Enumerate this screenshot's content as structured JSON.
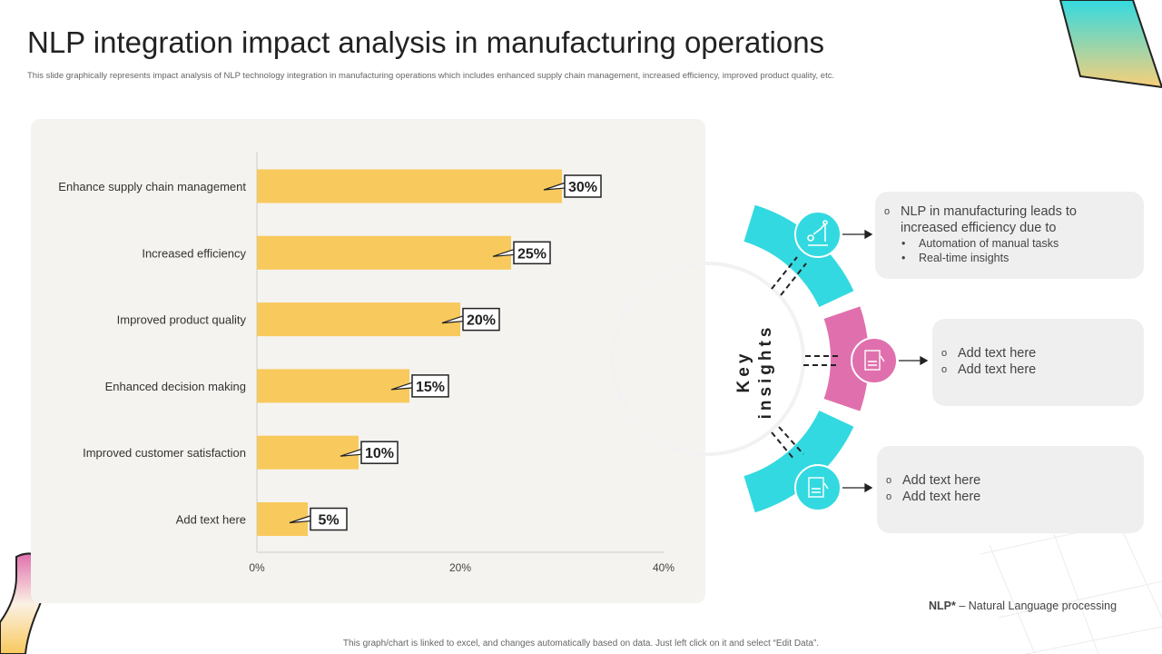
{
  "title": "NLP integration impact analysis in manufacturing operations",
  "subtitle": "This slide graphically represents impact analysis of NLP technology integration in manufacturing operations which includes enhanced supply chain management, increased efficiency, improved product quality, etc.",
  "chart_data": {
    "type": "bar",
    "orientation": "horizontal",
    "categories": [
      "Enhance supply chain management",
      "Increased efficiency",
      "Improved product quality",
      "Enhanced decision making",
      "Improved customer satisfaction",
      "Add text here"
    ],
    "values": [
      30,
      25,
      20,
      15,
      10,
      5
    ],
    "data_labels": [
      "30%",
      "25%",
      "20%",
      "15%",
      "10%",
      "5%"
    ],
    "xlim": [
      0,
      40
    ],
    "x_ticks": [
      "0%",
      "20%",
      "40%"
    ],
    "bar_color": "#f8c95c",
    "grid": false
  },
  "insights": {
    "label": "Key insights",
    "colors": {
      "cyan": "#33d9e0",
      "pink": "#e070ad"
    },
    "items": [
      {
        "icon": "robot-arm-icon",
        "heading": "NLP in manufacturing leads to increased efficiency due to",
        "bullets": [
          "Automation of manual tasks",
          "Real-time insights"
        ]
      },
      {
        "icon": "document-grade-icon",
        "lines": [
          "Add text here",
          "Add text here"
        ]
      },
      {
        "icon": "document-grade-icon",
        "lines": [
          "Add text here",
          "Add text here"
        ]
      }
    ]
  },
  "footnote": {
    "abbr": "NLP*",
    "text": " – Natural Language processing"
  },
  "footer": "This graph/chart is linked to excel, and changes automatically based on data. Just left click on it and select “Edit Data”."
}
